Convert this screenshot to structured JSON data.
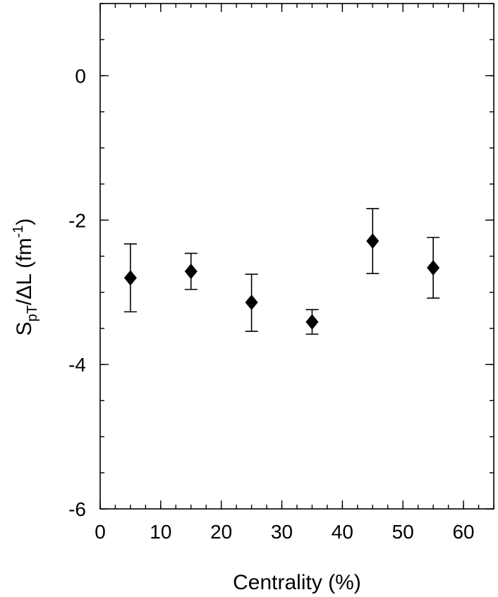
{
  "chart_data": {
    "type": "scatter",
    "title": "",
    "xlabel": "Centrality (%)",
    "ylabel": {
      "base": "S",
      "sub": "pT",
      "slash": "/",
      "delta": "Δ",
      "var": "L (fm",
      "sup": "-1",
      "close": ")"
    },
    "xlim": [
      0,
      65
    ],
    "ylim": [
      -6,
      1
    ],
    "x_ticks": [
      0,
      10,
      20,
      30,
      40,
      50,
      60
    ],
    "x_minor_step": 2.5,
    "y_ticks": [
      0,
      -2,
      -4,
      -6
    ],
    "y_minor_step": 0.5,
    "grid": false,
    "legend": "none",
    "marker": "diamond",
    "marker_color": "#000000",
    "series": [
      {
        "x": [
          5,
          15,
          25,
          35,
          45,
          55
        ],
        "y": [
          -2.8,
          -2.71,
          -3.14,
          -3.41,
          -2.29,
          -2.66
        ],
        "err_low": [
          0.47,
          0.25,
          0.4,
          0.17,
          0.45,
          0.42
        ],
        "err_high": [
          0.47,
          0.25,
          0.39,
          0.17,
          0.45,
          0.42
        ]
      }
    ]
  }
}
